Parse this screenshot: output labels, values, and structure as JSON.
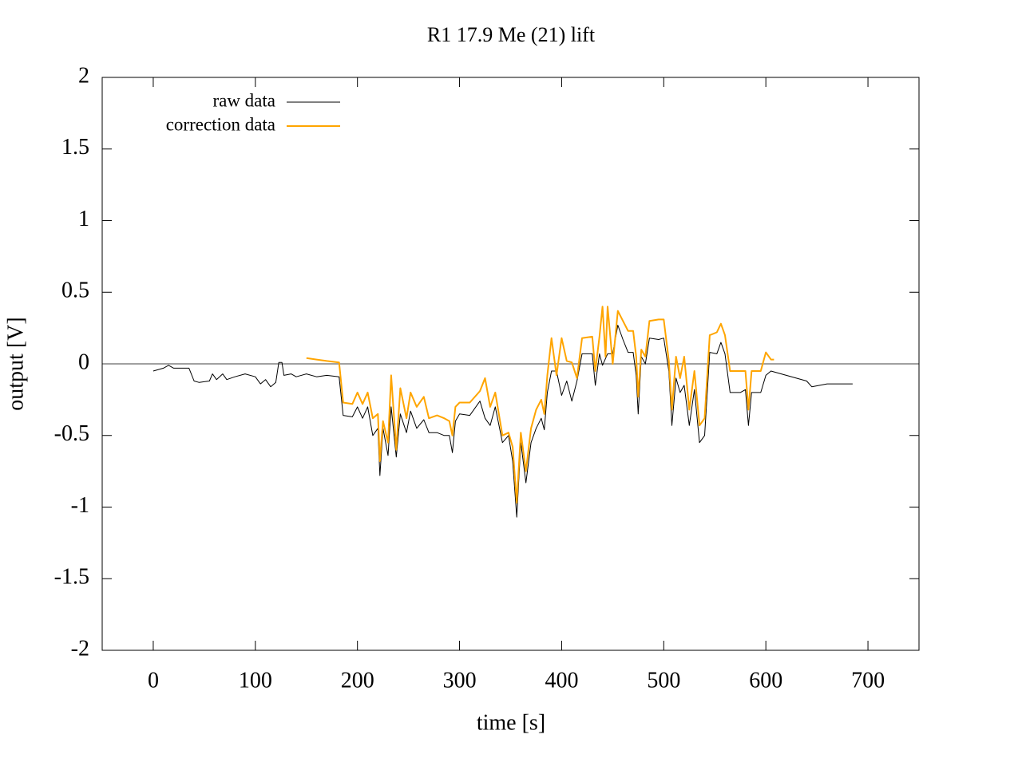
{
  "chart_data": {
    "type": "line",
    "title": "R1 17.9  Me (21) lift",
    "x_label": "time [s]",
    "y_label": "output [V]",
    "xlim": [
      -50,
      750
    ],
    "ylim": [
      -2,
      2
    ],
    "xticks": [
      0,
      100,
      200,
      300,
      400,
      500,
      600,
      700
    ],
    "yticks": [
      -2,
      -1.5,
      -1,
      -0.5,
      0,
      0.5,
      1,
      1.5,
      2
    ],
    "zero_axis": true,
    "legend_position": "top-left",
    "series": [
      {
        "name": "raw data",
        "color": "#000000",
        "x": [
          0,
          10,
          15,
          20,
          35,
          40,
          45,
          55,
          58,
          62,
          68,
          72,
          80,
          90,
          100,
          105,
          110,
          115,
          120,
          123,
          126,
          128,
          135,
          140,
          150,
          160,
          170,
          182,
          186,
          195,
          200,
          205,
          210,
          215,
          220,
          222,
          225,
          230,
          233,
          238,
          242,
          248,
          252,
          258,
          265,
          270,
          278,
          285,
          290,
          293,
          296,
          300,
          310,
          320,
          325,
          330,
          335,
          342,
          348,
          352,
          356,
          360,
          365,
          370,
          375,
          380,
          383,
          386,
          390,
          395,
          400,
          405,
          410,
          415,
          420,
          430,
          433,
          437,
          440,
          445,
          450,
          455,
          460,
          465,
          470,
          473,
          475,
          478,
          482,
          486,
          495,
          500,
          505,
          508,
          512,
          516,
          520,
          525,
          530,
          535,
          540,
          545,
          552,
          556,
          560,
          565,
          575,
          580,
          583,
          586,
          595,
          600,
          605,
          620,
          640,
          645,
          660,
          685
        ],
        "values": [
          -0.05,
          -0.03,
          -0.01,
          -0.03,
          -0.03,
          -0.12,
          -0.13,
          -0.12,
          -0.07,
          -0.11,
          -0.07,
          -0.11,
          -0.09,
          -0.07,
          -0.09,
          -0.14,
          -0.11,
          -0.16,
          -0.13,
          0.01,
          0.01,
          -0.08,
          -0.07,
          -0.09,
          -0.07,
          -0.09,
          -0.08,
          -0.09,
          -0.36,
          -0.37,
          -0.3,
          -0.38,
          -0.3,
          -0.5,
          -0.45,
          -0.78,
          -0.45,
          -0.64,
          -0.3,
          -0.65,
          -0.35,
          -0.48,
          -0.33,
          -0.45,
          -0.39,
          -0.48,
          -0.48,
          -0.5,
          -0.5,
          -0.62,
          -0.4,
          -0.35,
          -0.36,
          -0.26,
          -0.38,
          -0.43,
          -0.3,
          -0.55,
          -0.5,
          -0.68,
          -1.07,
          -0.55,
          -0.83,
          -0.55,
          -0.45,
          -0.38,
          -0.46,
          -0.2,
          -0.05,
          -0.05,
          -0.22,
          -0.12,
          -0.26,
          -0.12,
          0.07,
          0.07,
          -0.15,
          0.07,
          -0.01,
          0.07,
          0.07,
          0.27,
          0.17,
          0.08,
          0.08,
          -0.08,
          -0.35,
          0.05,
          0,
          0.18,
          0.17,
          0.18,
          -0.05,
          -0.43,
          -0.1,
          -0.2,
          -0.15,
          -0.43,
          -0.18,
          -0.55,
          -0.5,
          0.08,
          0.07,
          0.15,
          0.07,
          -0.2,
          -0.2,
          -0.18,
          -0.43,
          -0.2,
          -0.2,
          -0.08,
          -0.05,
          -0.08,
          -0.12,
          -0.16,
          -0.14,
          -0.14
        ]
      },
      {
        "name": "correction data",
        "color": "#ffa500",
        "x": [
          150,
          160,
          170,
          182,
          186,
          195,
          200,
          205,
          210,
          215,
          220,
          222,
          225,
          230,
          233,
          238,
          242,
          248,
          252,
          258,
          265,
          270,
          278,
          285,
          290,
          293,
          296,
          300,
          310,
          320,
          325,
          330,
          335,
          342,
          348,
          352,
          356,
          360,
          365,
          370,
          375,
          380,
          383,
          386,
          390,
          395,
          400,
          405,
          410,
          415,
          420,
          430,
          433,
          437,
          440,
          443,
          445,
          450,
          455,
          460,
          465,
          470,
          473,
          475,
          478,
          482,
          486,
          495,
          500,
          505,
          508,
          512,
          516,
          520,
          525,
          530,
          535,
          540,
          545,
          552,
          556,
          560,
          565,
          575,
          580,
          583,
          586,
          595,
          600,
          605,
          608
        ],
        "values": [
          0.04,
          0.03,
          0.02,
          0.01,
          -0.27,
          -0.28,
          -0.2,
          -0.28,
          -0.2,
          -0.38,
          -0.35,
          -0.68,
          -0.4,
          -0.55,
          -0.08,
          -0.6,
          -0.17,
          -0.38,
          -0.2,
          -0.3,
          -0.23,
          -0.38,
          -0.36,
          -0.38,
          -0.4,
          -0.5,
          -0.3,
          -0.27,
          -0.27,
          -0.19,
          -0.1,
          -0.3,
          -0.2,
          -0.5,
          -0.48,
          -0.58,
          -0.97,
          -0.48,
          -0.75,
          -0.45,
          -0.32,
          -0.25,
          -0.35,
          -0.08,
          0.18,
          -0.08,
          0.18,
          0.02,
          0.01,
          -0.1,
          0.18,
          0.19,
          -0.05,
          0.19,
          0.4,
          0.05,
          0.4,
          0,
          0.37,
          0.3,
          0.23,
          0.23,
          0.05,
          -0.23,
          0.1,
          0.05,
          0.3,
          0.31,
          0.31,
          0.02,
          -0.32,
          0.05,
          -0.1,
          0.05,
          -0.32,
          -0.05,
          -0.43,
          -0.38,
          0.2,
          0.22,
          0.28,
          0.2,
          -0.05,
          -0.05,
          -0.05,
          -0.32,
          -0.05,
          -0.05,
          0.08,
          0.03,
          0.03
        ]
      }
    ]
  }
}
